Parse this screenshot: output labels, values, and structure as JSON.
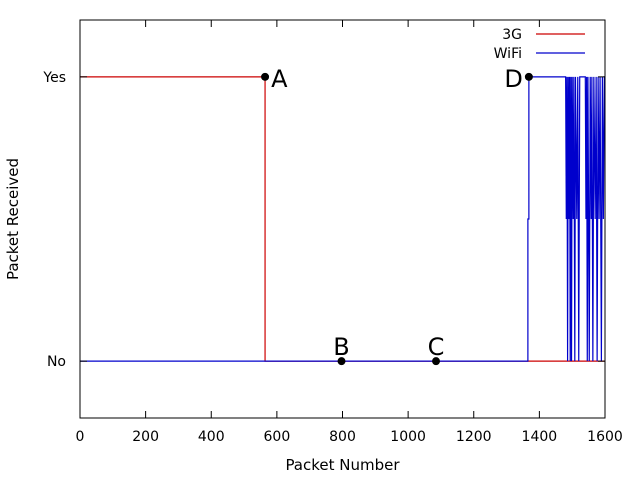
{
  "chart_data": {
    "type": "line",
    "xlabel": "Packet Number",
    "ylabel": "Packet Received",
    "xlim": [
      0,
      1600
    ],
    "ylim": [
      -0.2,
      1.2
    ],
    "x_ticks": [
      0,
      200,
      400,
      600,
      800,
      1000,
      1200,
      1400,
      1600
    ],
    "y_ticks": [
      {
        "value": 0,
        "label": "No"
      },
      {
        "value": 1,
        "label": "Yes"
      }
    ],
    "grid": false,
    "legend_position": "top-right",
    "series": [
      {
        "name": "3G",
        "color": "#cc0000",
        "points": [
          [
            0,
            1
          ],
          [
            564,
            1
          ],
          [
            564,
            0
          ],
          [
            1600,
            0
          ]
        ]
      },
      {
        "name": "WiFi",
        "color": "#0000cc",
        "points": [
          [
            0,
            0
          ],
          [
            1365,
            0
          ],
          [
            1365,
            0.5
          ],
          [
            1368,
            0.5
          ],
          [
            1368,
            1
          ],
          [
            1480,
            1
          ],
          [
            1482,
            0.5
          ],
          [
            1484,
            1
          ],
          [
            1486,
            0
          ],
          [
            1488,
            1
          ],
          [
            1490,
            0.5
          ],
          [
            1492,
            1
          ],
          [
            1494,
            0
          ],
          [
            1496,
            1
          ],
          [
            1498,
            0
          ],
          [
            1500,
            1
          ],
          [
            1503,
            0.5
          ],
          [
            1505,
            1
          ],
          [
            1508,
            0
          ],
          [
            1510,
            1
          ],
          [
            1514,
            0.5
          ],
          [
            1517,
            1
          ],
          [
            1520,
            0
          ],
          [
            1523,
            1
          ],
          [
            1540,
            1
          ],
          [
            1542,
            0.5
          ],
          [
            1544,
            1
          ],
          [
            1546,
            0
          ],
          [
            1548,
            1
          ],
          [
            1552,
            0
          ],
          [
            1555,
            1
          ],
          [
            1558,
            0.5
          ],
          [
            1560,
            1
          ],
          [
            1563,
            0
          ],
          [
            1566,
            1
          ],
          [
            1570,
            0.5
          ],
          [
            1573,
            1
          ],
          [
            1576,
            0
          ],
          [
            1579,
            1
          ],
          [
            1582,
            0.5
          ],
          [
            1585,
            1
          ],
          [
            1589,
            0
          ],
          [
            1592,
            1
          ],
          [
            1595,
            0.5
          ],
          [
            1598,
            1
          ],
          [
            1600,
            1
          ]
        ]
      }
    ],
    "annotations": [
      {
        "label": "A",
        "x": 564,
        "y": 1,
        "label_side": "right"
      },
      {
        "label": "B",
        "x": 797,
        "y": 0,
        "label_side": "above"
      },
      {
        "label": "C",
        "x": 1085,
        "y": 0,
        "label_side": "above"
      },
      {
        "label": "D",
        "x": 1368,
        "y": 1,
        "label_side": "left"
      }
    ]
  }
}
